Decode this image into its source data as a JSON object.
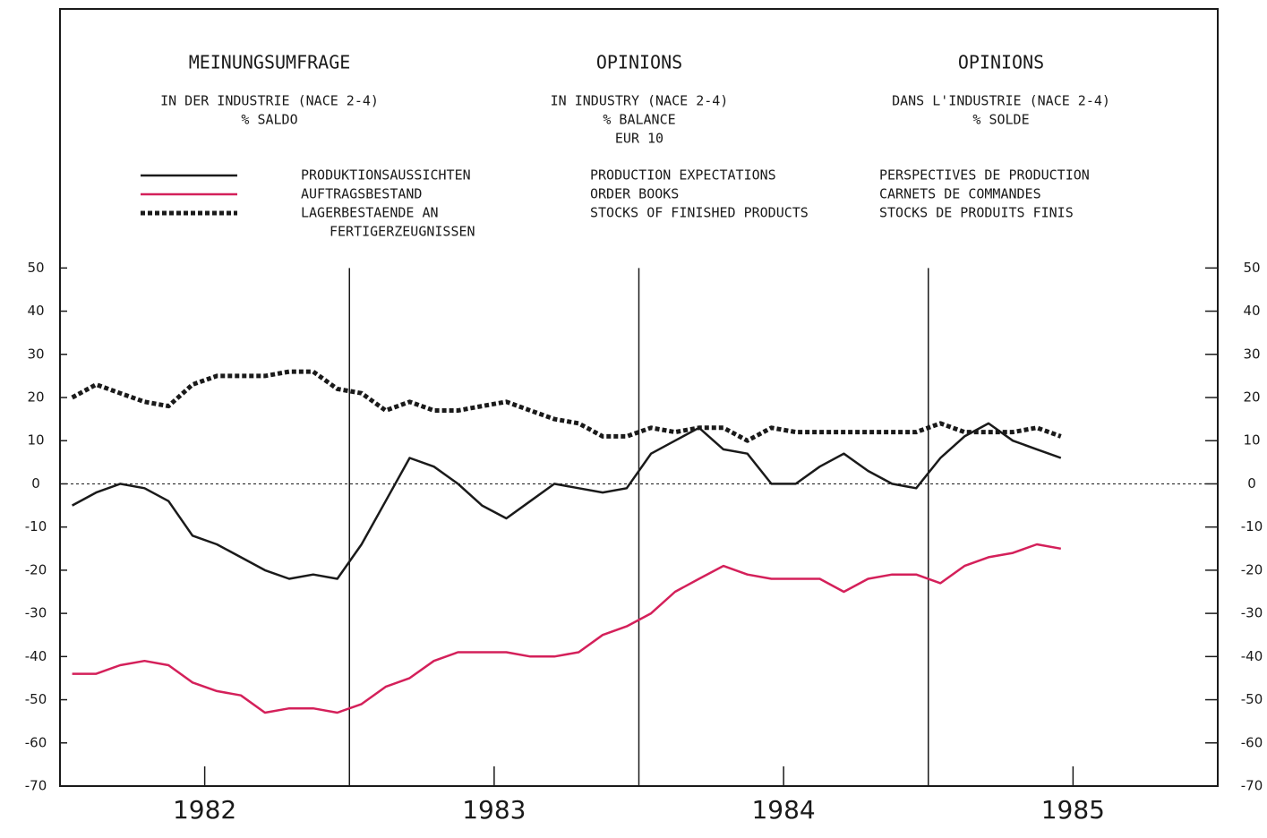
{
  "chart_data": {
    "type": "line",
    "headers": [
      {
        "title": "MEINUNGSUMFRAGE",
        "lines": [
          "IN DER INDUSTRIE (NACE 2-4)",
          "% SALDO"
        ]
      },
      {
        "title": "OPINIONS",
        "lines": [
          "IN INDUSTRY (NACE 2-4)",
          "% BALANCE",
          "EUR 10"
        ]
      },
      {
        "title": "OPINIONS",
        "lines": [
          "DANS L'INDUSTRIE (NACE 2-4)",
          "% SOLDE"
        ]
      }
    ],
    "legend_de": [
      [
        "PRODUKTIONSAUSSICHTEN"
      ],
      [
        "AUFTRAGSBESTAND"
      ],
      [
        "LAGERBESTAENDE AN",
        "FERTIGERZEUGNISSEN"
      ]
    ],
    "legend_fr": [
      [
        "PERSPECTIVES DE PRODUCTION"
      ],
      [
        "CARNETS DE COMMANDES"
      ],
      [
        "STOCKS DE PRODUITS FINIS"
      ]
    ],
    "x": [
      1982.042,
      1982.125,
      1982.208,
      1982.292,
      1982.375,
      1982.458,
      1982.542,
      1982.625,
      1982.708,
      1982.792,
      1982.875,
      1982.958,
      1983.042,
      1983.125,
      1983.208,
      1983.292,
      1983.375,
      1983.458,
      1983.542,
      1983.625,
      1983.708,
      1983.792,
      1983.875,
      1983.958,
      1984.042,
      1984.125,
      1984.208,
      1984.292,
      1984.375,
      1984.458,
      1984.542,
      1984.625,
      1984.708,
      1984.792,
      1984.875,
      1984.958,
      1985.042,
      1985.125,
      1985.208,
      1985.292,
      1985.375,
      1985.458
    ],
    "series": [
      {
        "name": "PRODUCTION EXPECTATIONS",
        "color": "#1a1a1a",
        "dash": "solid",
        "values": [
          -5,
          -2,
          0,
          -1,
          -4,
          -12,
          -14,
          -17,
          -20,
          -22,
          -21,
          -22,
          -14,
          -4,
          6,
          4,
          0,
          -5,
          -8,
          -4,
          0,
          -1,
          -2,
          -1,
          7,
          10,
          13,
          8,
          7,
          0,
          0,
          4,
          7,
          3,
          0,
          -1,
          6,
          11,
          14,
          10,
          8,
          6
        ]
      },
      {
        "name": "ORDER BOOKS",
        "color": "#d4205a",
        "dash": "solid",
        "values": [
          -44,
          -44,
          -42,
          -41,
          -42,
          -46,
          -48,
          -49,
          -53,
          -52,
          -52,
          -53,
          -51,
          -47,
          -45,
          -41,
          -39,
          -39,
          -39,
          -40,
          -40,
          -39,
          -35,
          -33,
          -30,
          -25,
          -22,
          -19,
          -21,
          -22,
          -22,
          -22,
          -25,
          -22,
          -21,
          -21,
          -23,
          -19,
          -17,
          -16,
          -14,
          -15
        ]
      },
      {
        "name": "STOCKS OF FINISHED PRODUCTS",
        "color": "#1a1a1a",
        "dash": "dotted",
        "values": [
          20,
          23,
          21,
          19,
          18,
          23,
          25,
          25,
          25,
          26,
          26,
          22,
          21,
          17,
          19,
          17,
          17,
          18,
          19,
          17,
          15,
          14,
          11,
          11,
          13,
          12,
          13,
          13,
          10,
          13,
          12,
          12,
          12,
          12,
          12,
          12,
          14,
          12,
          12,
          12,
          13,
          11
        ]
      }
    ],
    "xlim": [
      1982,
      1986
    ],
    "xticks": [
      {
        "value": 1982.5,
        "label": "1982"
      },
      {
        "value": 1983.5,
        "label": "1983"
      },
      {
        "value": 1984.5,
        "label": "1984"
      },
      {
        "value": 1985.5,
        "label": "1985"
      }
    ],
    "vlines": [
      1983,
      1984,
      1985
    ],
    "ylim": [
      -70,
      110
    ],
    "yticks": [
      -70,
      -60,
      -50,
      -40,
      -30,
      -20,
      -10,
      0,
      10,
      20,
      30,
      40,
      50
    ],
    "zero_line": true
  }
}
